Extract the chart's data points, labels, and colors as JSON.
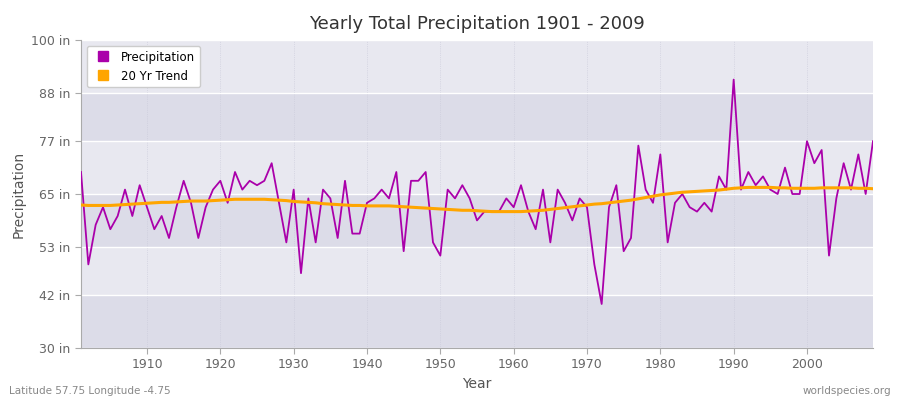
{
  "title": "Yearly Total Precipitation 1901 - 2009",
  "xlabel": "Year",
  "ylabel": "Precipitation",
  "bottom_left_label": "Latitude 57.75 Longitude -4.75",
  "bottom_right_label": "worldspecies.org",
  "legend_entries": [
    "Precipitation",
    "20 Yr Trend"
  ],
  "precip_color": "#AA00AA",
  "trend_color": "#FFA500",
  "bg_color": "#FFFFFF",
  "plot_bg_color": "#E8E8EE",
  "ylim": [
    30,
    100
  ],
  "yticks": [
    30,
    42,
    53,
    65,
    77,
    88,
    100
  ],
  "ytick_labels": [
    "30 in",
    "42 in",
    "53 in",
    "65 in",
    "77 in",
    "88 in",
    "100 in"
  ],
  "xlim": [
    1901,
    2009
  ],
  "years": [
    1901,
    1902,
    1903,
    1904,
    1905,
    1906,
    1907,
    1908,
    1909,
    1910,
    1911,
    1912,
    1913,
    1914,
    1915,
    1916,
    1917,
    1918,
    1919,
    1920,
    1921,
    1922,
    1923,
    1924,
    1925,
    1926,
    1927,
    1928,
    1929,
    1930,
    1931,
    1932,
    1933,
    1934,
    1935,
    1936,
    1937,
    1938,
    1939,
    1940,
    1941,
    1942,
    1943,
    1944,
    1945,
    1946,
    1947,
    1948,
    1949,
    1950,
    1951,
    1952,
    1953,
    1954,
    1955,
    1956,
    1957,
    1958,
    1959,
    1960,
    1961,
    1962,
    1963,
    1964,
    1965,
    1966,
    1967,
    1968,
    1969,
    1970,
    1971,
    1972,
    1973,
    1974,
    1975,
    1976,
    1977,
    1978,
    1979,
    1980,
    1981,
    1982,
    1983,
    1984,
    1985,
    1986,
    1987,
    1988,
    1989,
    1990,
    1991,
    1992,
    1993,
    1994,
    1995,
    1996,
    1997,
    1998,
    1999,
    2000,
    2001,
    2002,
    2003,
    2004,
    2005,
    2006,
    2007,
    2008,
    2009
  ],
  "precip": [
    70,
    49,
    58,
    62,
    57,
    60,
    66,
    60,
    67,
    62,
    57,
    60,
    55,
    62,
    68,
    63,
    55,
    62,
    66,
    68,
    63,
    70,
    66,
    68,
    67,
    68,
    72,
    63,
    54,
    66,
    47,
    64,
    54,
    66,
    64,
    55,
    68,
    56,
    56,
    63,
    64,
    66,
    64,
    70,
    52,
    68,
    68,
    70,
    54,
    51,
    66,
    64,
    67,
    64,
    59,
    61,
    61,
    61,
    64,
    62,
    67,
    61,
    57,
    66,
    54,
    66,
    63,
    59,
    64,
    62,
    49,
    40,
    62,
    67,
    52,
    55,
    76,
    66,
    63,
    74,
    54,
    63,
    65,
    62,
    61,
    63,
    61,
    69,
    66,
    91,
    66,
    70,
    67,
    69,
    66,
    65,
    71,
    65,
    65,
    77,
    72,
    75,
    51,
    64,
    72,
    66,
    74,
    65,
    77
  ],
  "trend": [
    62.5,
    62.4,
    62.4,
    62.4,
    62.4,
    62.5,
    62.6,
    62.7,
    62.8,
    62.9,
    63.0,
    63.1,
    63.1,
    63.2,
    63.3,
    63.4,
    63.4,
    63.4,
    63.5,
    63.6,
    63.7,
    63.8,
    63.8,
    63.8,
    63.8,
    63.8,
    63.7,
    63.6,
    63.5,
    63.3,
    63.2,
    63.1,
    63.0,
    62.8,
    62.7,
    62.6,
    62.5,
    62.4,
    62.4,
    62.3,
    62.3,
    62.3,
    62.3,
    62.2,
    62.1,
    62.0,
    61.9,
    61.8,
    61.7,
    61.6,
    61.5,
    61.4,
    61.3,
    61.3,
    61.2,
    61.1,
    61.0,
    61.0,
    61.0,
    61.0,
    61.0,
    61.1,
    61.2,
    61.3,
    61.5,
    61.7,
    61.9,
    62.1,
    62.3,
    62.5,
    62.7,
    62.8,
    63.0,
    63.2,
    63.4,
    63.6,
    63.9,
    64.2,
    64.5,
    64.8,
    65.0,
    65.2,
    65.4,
    65.5,
    65.6,
    65.7,
    65.8,
    65.9,
    66.1,
    66.3,
    66.4,
    66.5,
    66.5,
    66.5,
    66.5,
    66.4,
    66.4,
    66.3,
    66.3,
    66.3,
    66.3,
    66.4,
    66.4,
    66.4,
    66.4,
    66.4,
    66.3,
    66.3,
    66.2
  ]
}
